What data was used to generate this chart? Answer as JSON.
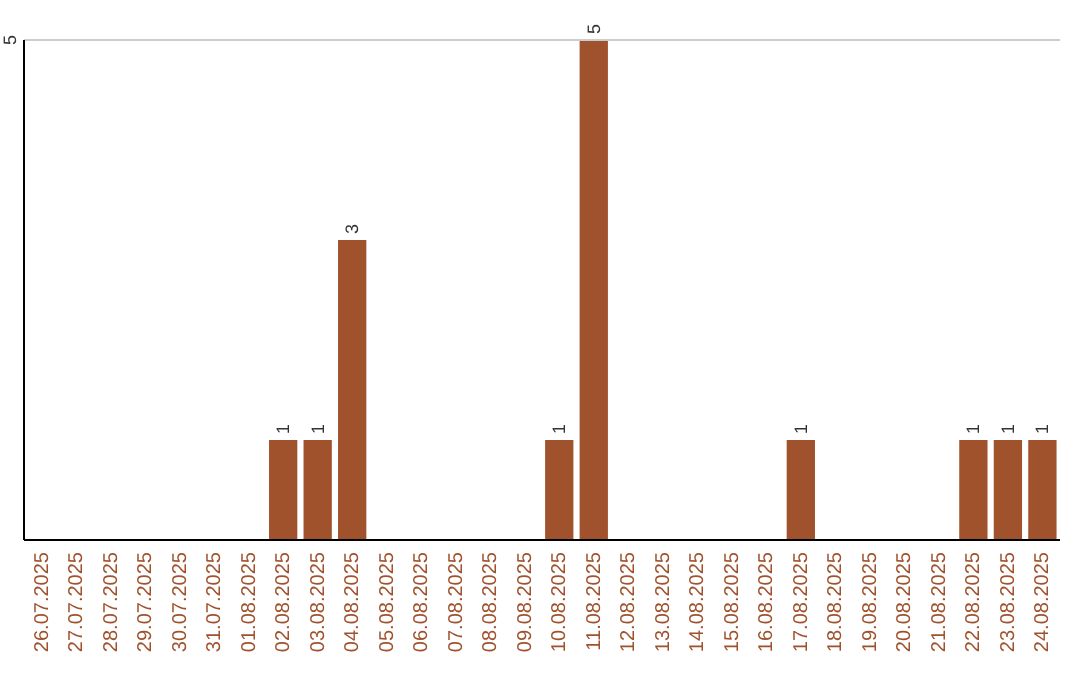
{
  "chart_data": {
    "type": "bar",
    "categories": [
      "26.07.2025",
      "27.07.2025",
      "28.07.2025",
      "29.07.2025",
      "30.07.2025",
      "31.07.2025",
      "01.08.2025",
      "02.08.2025",
      "03.08.2025",
      "04.08.2025",
      "05.08.2025",
      "06.08.2025",
      "07.08.2025",
      "08.08.2025",
      "09.08.2025",
      "10.08.2025",
      "11.08.2025",
      "12.08.2025",
      "13.08.2025",
      "14.08.2025",
      "15.08.2025",
      "16.08.2025",
      "17.08.2025",
      "18.08.2025",
      "19.08.2025",
      "20.08.2025",
      "21.08.2025",
      "22.08.2025",
      "23.08.2025",
      "24.08.2025"
    ],
    "values": [
      0,
      0,
      0,
      0,
      0,
      0,
      0,
      1,
      1,
      3,
      0,
      0,
      0,
      0,
      0,
      1,
      5,
      0,
      0,
      0,
      0,
      0,
      1,
      0,
      0,
      0,
      0,
      1,
      1,
      1
    ],
    "value_labels": [
      null,
      null,
      null,
      null,
      null,
      null,
      null,
      "1",
      "1",
      "3",
      null,
      null,
      null,
      null,
      null,
      "1",
      "5",
      null,
      null,
      null,
      null,
      null,
      "1",
      null,
      null,
      null,
      null,
      "1",
      "1",
      "1"
    ],
    "color": "#a0522d",
    "ylim": [
      0,
      5
    ],
    "yticks": [
      5
    ],
    "ref_lines": [
      {
        "axis": "y",
        "value": 5,
        "color": "#cccccc"
      }
    ]
  }
}
